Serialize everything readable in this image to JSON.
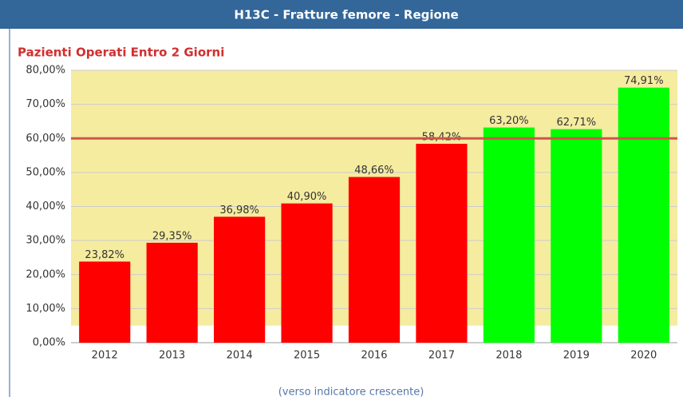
{
  "chart_data": {
    "type": "bar",
    "header": "H13C - Fratture femore - Regione",
    "title": "Pazienti Operati Entro 2 Giorni",
    "footer": "(verso indicatore crescente)",
    "categories": [
      "2012",
      "2013",
      "2014",
      "2015",
      "2016",
      "2017",
      "2018",
      "2019",
      "2020"
    ],
    "values": [
      23.82,
      29.35,
      36.98,
      40.9,
      48.66,
      58.42,
      63.2,
      62.71,
      74.91
    ],
    "value_labels": [
      "23,82%",
      "29,35%",
      "36,98%",
      "40,90%",
      "48,66%",
      "58,42%",
      "63,20%",
      "62,71%",
      "74,91%"
    ],
    "colors": [
      "#ff0000",
      "#ff0000",
      "#ff0000",
      "#ff0000",
      "#ff0000",
      "#ff0000",
      "#00ff00",
      "#00ff00",
      "#00ff00"
    ],
    "ylim": [
      0,
      80
    ],
    "yticks": [
      {
        "value": 0,
        "label": "0,00%"
      },
      {
        "value": 10,
        "label": "10,00%"
      },
      {
        "value": 20,
        "label": "20,00%"
      },
      {
        "value": 30,
        "label": "30,00%"
      },
      {
        "value": 40,
        "label": "40,00%"
      },
      {
        "value": 50,
        "label": "50,00%"
      },
      {
        "value": 60,
        "label": "60,00%"
      },
      {
        "value": 70,
        "label": "70,00%"
      },
      {
        "value": 80,
        "label": "80,00%"
      }
    ],
    "grid": true,
    "band": {
      "from": 5,
      "to": 80,
      "color": "#f5eca0"
    },
    "reference_line": {
      "value": 60,
      "color": "#d0544a"
    }
  }
}
